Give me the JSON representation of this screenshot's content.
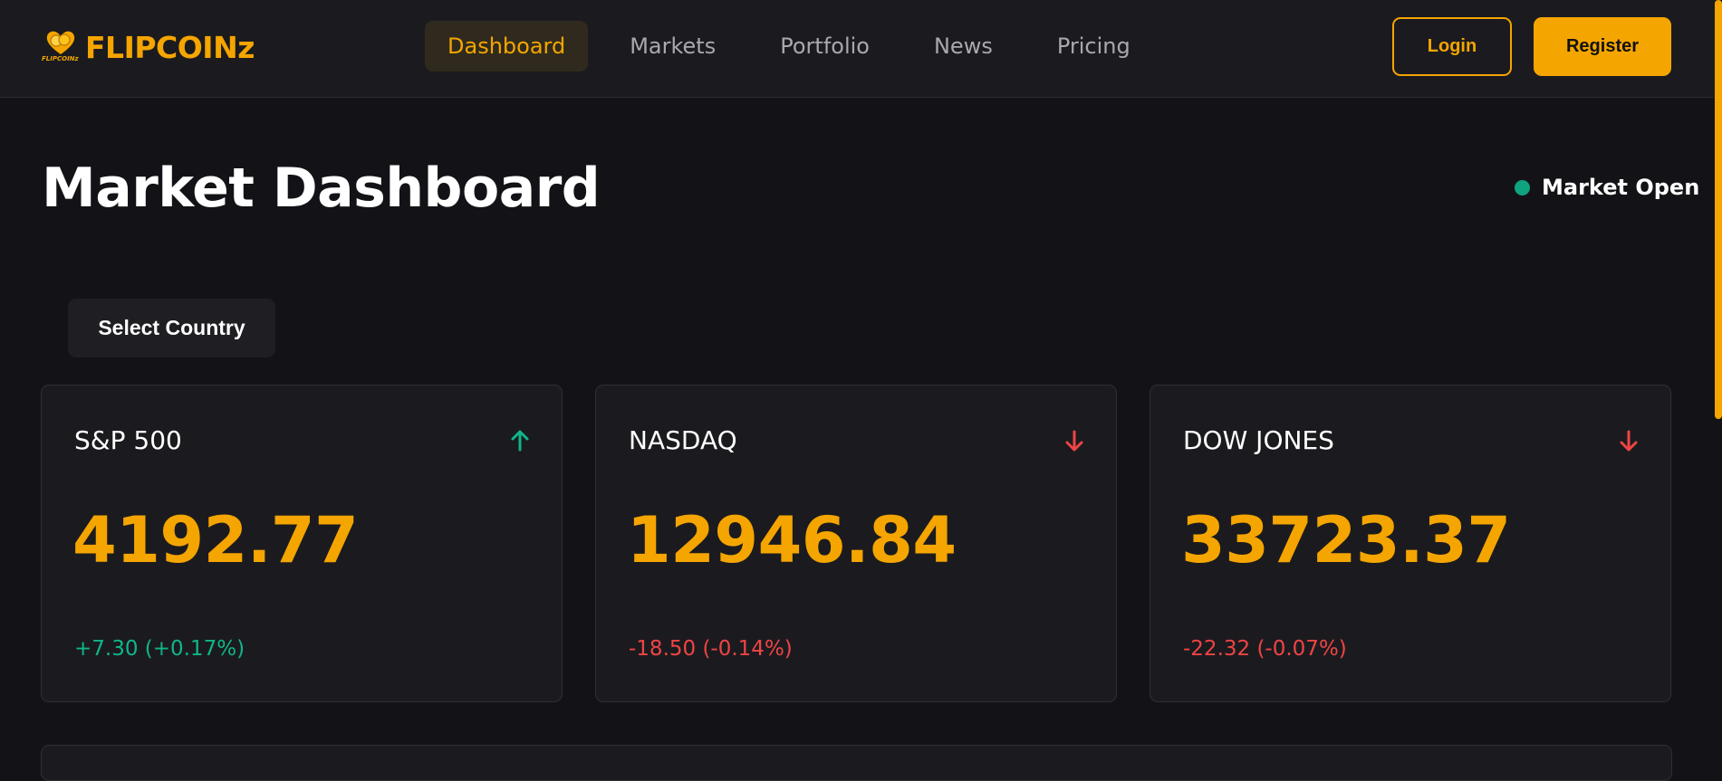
{
  "brand": {
    "mini_text": "FLIPCOINz",
    "name": "FLIPCOINz",
    "color": "#f5a500"
  },
  "nav": {
    "items": [
      {
        "label": "Dashboard",
        "active": true
      },
      {
        "label": "Markets",
        "active": false
      },
      {
        "label": "Portfolio",
        "active": false
      },
      {
        "label": "News",
        "active": false
      },
      {
        "label": "Pricing",
        "active": false
      }
    ]
  },
  "auth": {
    "login_label": "Login",
    "register_label": "Register"
  },
  "page": {
    "title": "Market Dashboard",
    "status": "Market Open",
    "status_color": "#10a37f"
  },
  "filter": {
    "select_country_label": "Select Country"
  },
  "indices": [
    {
      "name": "S&P 500",
      "value": "4192.77",
      "change": "+7.30 (+0.17%)",
      "direction": "up",
      "icon": "arrow-up-icon"
    },
    {
      "name": "NASDAQ",
      "value": "12946.84",
      "change": "-18.50 (-0.14%)",
      "direction": "down",
      "icon": "arrow-down-icon"
    },
    {
      "name": "DOW JONES",
      "value": "33723.37",
      "change": "-22.32 (-0.07%)",
      "direction": "down",
      "icon": "arrow-down-icon"
    }
  ],
  "colors": {
    "accent": "#f5a500",
    "positive": "#10b58a",
    "negative": "#ef4444"
  }
}
